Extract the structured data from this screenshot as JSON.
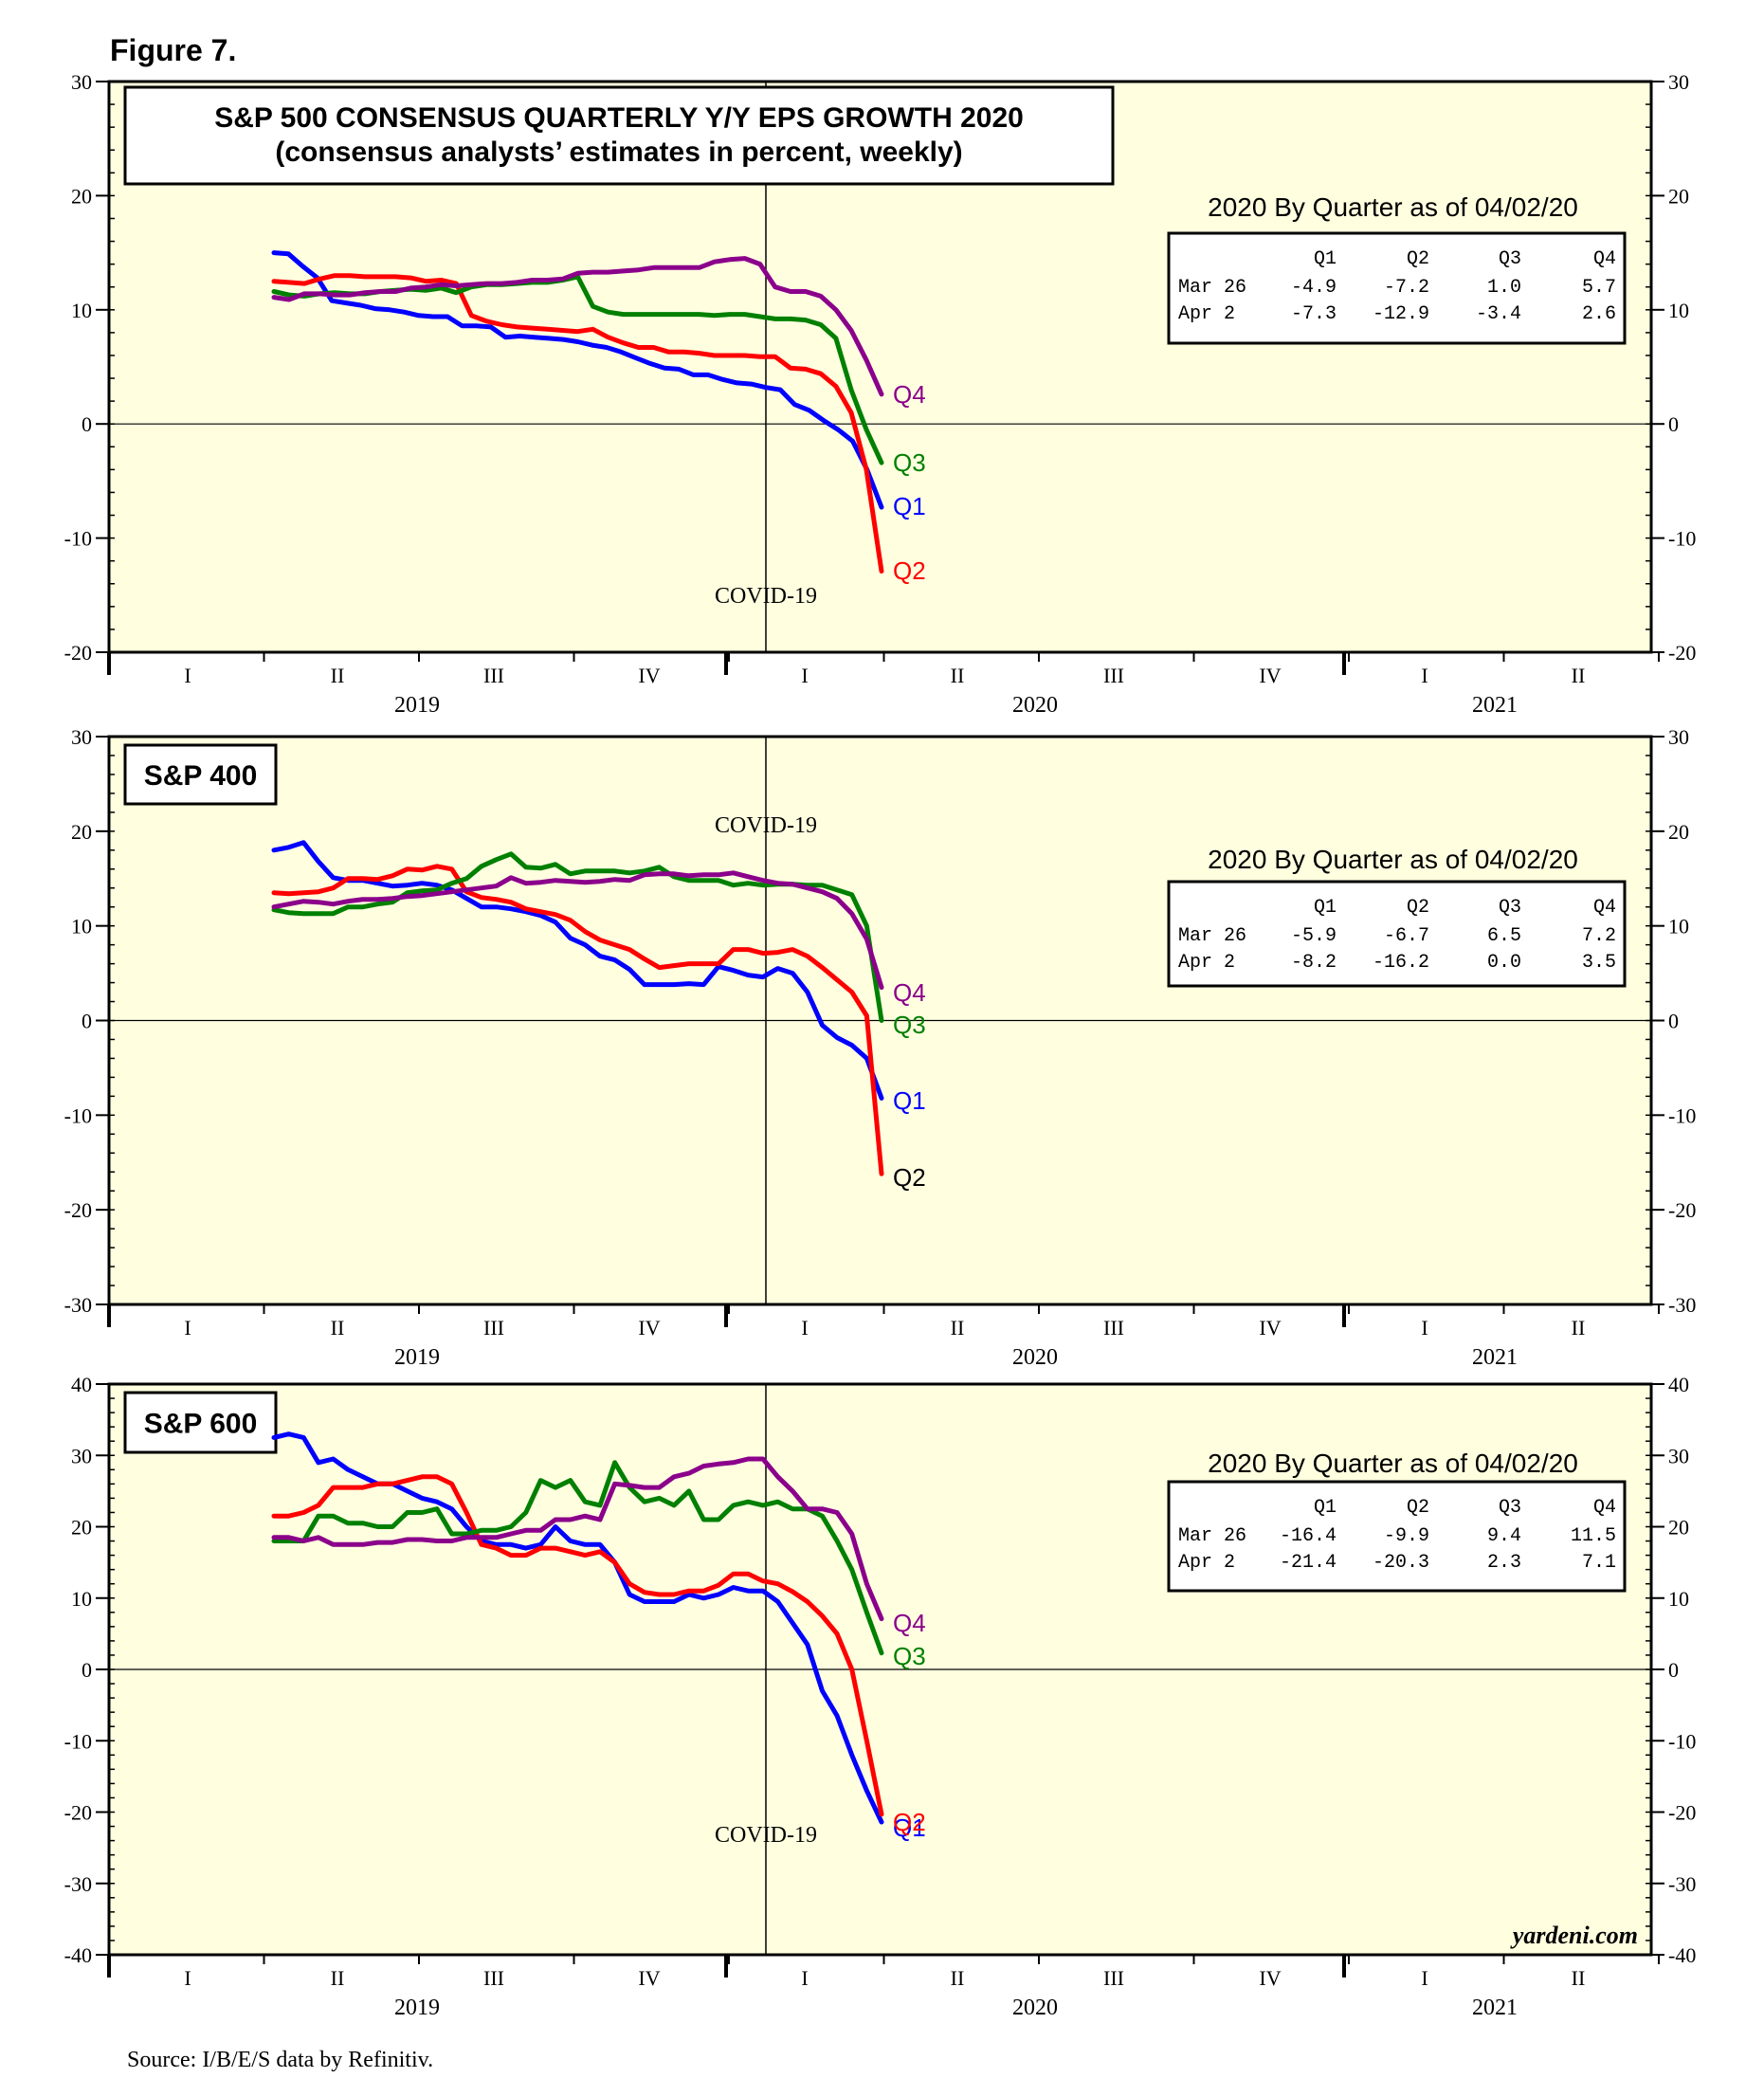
{
  "figure_label": "Figure 7.",
  "source": "Source: I/B/E/S data by Refinitiv.",
  "credit": "yardeni.com",
  "colors": {
    "Q1": "#0000ff",
    "Q2": "#ff0000",
    "Q3": "#008000",
    "Q4": "#8b008b",
    "panel_bg": "#ffffe0"
  },
  "x_axis": {
    "quarters": [
      "I",
      "II",
      "III",
      "IV",
      "I",
      "II",
      "III",
      "IV",
      "I",
      "II"
    ],
    "years": [
      "2019",
      "2020",
      "2021"
    ]
  },
  "chart_data": [
    {
      "type": "line",
      "id": "sp500",
      "title": "S&P 500 CONSENSUS QUARTERLY Y/Y EPS GROWTH 2020",
      "subtitle": "(consensus analysts’ estimates in percent, weekly)",
      "ylim": [
        -20,
        30
      ],
      "yticks": [
        30,
        20,
        10,
        0,
        -10,
        -20
      ],
      "yticks_labels": [
        "30",
        "20",
        "10",
        "0",
        "-10",
        "-20"
      ],
      "annotation": "COVID-19",
      "table": {
        "title": "2020 By Quarter as of 04/02/20",
        "header": [
          "Q1",
          "Q2",
          "Q3",
          "Q4"
        ],
        "rows": [
          {
            "label": "Mar 26",
            "values": [
              "-4.9",
              "-7.2",
              "1.0",
              "5.7"
            ]
          },
          {
            "label": "Apr  2",
            "values": [
              "-7.3",
              "-12.9",
              "-3.4",
              "2.6"
            ]
          }
        ]
      },
      "series": [
        {
          "name": "Q1",
          "label": "Q1",
          "x": [
            0.0,
            0.1,
            0.2,
            0.28,
            0.4,
            0.5,
            0.6,
            0.7,
            0.8,
            0.9,
            1.0,
            1.1,
            1.2,
            1.3,
            1.4,
            1.5,
            1.6,
            1.7,
            1.8,
            1.9,
            2.0,
            2.1,
            2.2,
            2.3,
            2.4,
            2.5,
            2.6,
            2.7,
            2.8,
            2.9,
            3.0,
            3.1,
            3.2,
            3.3,
            3.4,
            3.5,
            3.6,
            3.7,
            3.8,
            3.9,
            4.0,
            4.1,
            4.2,
            4.3,
            4.4,
            4.5,
            4.6,
            4.7,
            4.8,
            4.9,
            5.0
          ],
          "values": [
            15.0,
            14.9,
            13.8,
            12.8,
            10.8,
            10.6,
            10.4,
            10.1,
            10.0,
            9.8,
            9.5,
            9.4,
            9.4,
            8.6,
            8.6,
            8.5,
            7.6,
            7.7,
            7.6,
            7.5,
            7.4,
            7.2,
            6.9,
            6.7,
            6.3,
            5.8,
            5.3,
            4.9,
            4.8,
            4.3,
            4.3,
            3.9,
            3.6,
            3.5,
            3.2,
            3.0,
            1.7,
            1.2,
            0.3,
            -0.5,
            -1.5,
            -4.0,
            -7.3,
            null,
            null,
            null,
            null,
            null,
            null,
            null,
            null
          ]
        },
        {
          "name": "Q2",
          "label": "Q2",
          "x": [
            0.0,
            0.1,
            0.2,
            0.3,
            0.4,
            0.5,
            0.6,
            0.7,
            0.8,
            0.9,
            1.0,
            1.1,
            1.2,
            1.3,
            1.4,
            1.5,
            1.6,
            1.7,
            1.8,
            1.9,
            2.0,
            2.1,
            2.2,
            2.3,
            2.4,
            2.5,
            2.6,
            2.7,
            2.8,
            2.9,
            3.0,
            3.1,
            3.2,
            3.3,
            3.4,
            3.5,
            3.6,
            3.7,
            3.8,
            3.9,
            4.0,
            4.1,
            4.2
          ],
          "values": [
            12.5,
            12.4,
            12.3,
            12.7,
            13.0,
            13.0,
            12.9,
            12.9,
            12.9,
            12.8,
            12.5,
            12.6,
            12.3,
            9.5,
            9.0,
            8.7,
            8.5,
            8.4,
            8.3,
            8.2,
            8.1,
            8.3,
            7.6,
            7.1,
            6.7,
            6.7,
            6.3,
            6.3,
            6.2,
            6.0,
            6.0,
            6.0,
            5.9,
            5.9,
            4.9,
            4.8,
            4.4,
            3.3,
            1.0,
            -4.0,
            -12.9,
            null,
            null
          ]
        },
        {
          "name": "Q3",
          "label": "Q3",
          "x": [
            0.0,
            0.1,
            0.2,
            0.3,
            0.4,
            0.5,
            0.6,
            0.7,
            0.8,
            0.9,
            1.0,
            1.1,
            1.2,
            1.3,
            1.4,
            1.5,
            1.6,
            1.7,
            1.8,
            1.9,
            2.0,
            2.1,
            2.2,
            2.3,
            2.4,
            2.5,
            2.6,
            2.7,
            2.8,
            2.9,
            3.0,
            3.1,
            3.2,
            3.3,
            3.4,
            3.5,
            3.6,
            3.7,
            3.8,
            3.9,
            4.0,
            4.1,
            4.2
          ],
          "values": [
            11.6,
            11.3,
            11.2,
            11.4,
            11.5,
            11.4,
            11.4,
            11.6,
            11.7,
            11.8,
            11.7,
            11.9,
            11.5,
            12.0,
            12.2,
            12.2,
            12.3,
            12.4,
            12.4,
            12.6,
            12.9,
            10.3,
            9.8,
            9.6,
            9.6,
            9.6,
            9.6,
            9.6,
            9.6,
            9.5,
            9.6,
            9.6,
            9.4,
            9.2,
            9.2,
            9.1,
            8.7,
            7.5,
            3.0,
            -0.5,
            -3.4,
            null,
            null
          ]
        },
        {
          "name": "Q4",
          "label": "Q4",
          "x": [
            0.0,
            0.1,
            0.2,
            0.3,
            0.4,
            0.5,
            0.6,
            0.7,
            0.8,
            0.9,
            1.0,
            1.1,
            1.2,
            1.3,
            1.4,
            1.5,
            1.6,
            1.7,
            1.8,
            1.9,
            2.0,
            2.1,
            2.2,
            2.3,
            2.4,
            2.5,
            2.6,
            2.7,
            2.8,
            2.9,
            3.0,
            3.1,
            3.2,
            3.3,
            3.4,
            3.5,
            3.6,
            3.7,
            3.8,
            3.9,
            4.0,
            4.1,
            4.2
          ],
          "values": [
            11.1,
            10.9,
            11.4,
            11.4,
            11.3,
            11.3,
            11.5,
            11.6,
            11.6,
            11.9,
            12.0,
            12.2,
            12.1,
            12.2,
            12.3,
            12.3,
            12.4,
            12.6,
            12.6,
            12.7,
            13.2,
            13.3,
            13.3,
            13.4,
            13.5,
            13.7,
            13.7,
            13.7,
            13.7,
            14.2,
            14.4,
            14.5,
            14.0,
            12.0,
            11.6,
            11.6,
            11.2,
            10.0,
            8.2,
            5.6,
            2.6,
            null,
            null
          ]
        }
      ]
    },
    {
      "type": "line",
      "id": "sp400",
      "title": "S&P 400",
      "ylim": [
        -30,
        30
      ],
      "yticks": [
        30,
        20,
        10,
        0,
        -10,
        -20,
        -30
      ],
      "yticks_labels": [
        "30",
        "20",
        "10",
        "0",
        "-10",
        "-20",
        "-30"
      ],
      "annotation": "COVID-19",
      "table": {
        "title": "2020 By Quarter as of 04/02/20",
        "header": [
          "Q1",
          "Q2",
          "Q3",
          "Q4"
        ],
        "rows": [
          {
            "label": "Mar 26",
            "values": [
              "-5.9",
              "-6.7",
              "6.5",
              "7.2"
            ]
          },
          {
            "label": "Apr  2",
            "values": [
              "-8.2",
              "-16.2",
              "0.0",
              "3.5"
            ]
          }
        ]
      },
      "series": [
        {
          "name": "Q1",
          "label": "Q1",
          "values": [
            18.0,
            18.3,
            18.8,
            16.8,
            15.1,
            14.8,
            14.8,
            14.5,
            14.2,
            14.3,
            14.5,
            14.3,
            13.8,
            12.9,
            12.0,
            12.0,
            11.8,
            11.5,
            11.1,
            10.4,
            8.7,
            8.0,
            6.8,
            6.4,
            5.4,
            3.8,
            3.8,
            3.8,
            3.9,
            3.8,
            5.7,
            5.3,
            4.8,
            4.6,
            5.5,
            5.0,
            3.0,
            -0.5,
            -1.8,
            -2.6,
            -4.0,
            -8.2
          ]
        },
        {
          "name": "Q2",
          "label": "Q2",
          "values": [
            13.5,
            13.4,
            13.5,
            13.6,
            14.0,
            15.0,
            15.0,
            14.9,
            15.3,
            16.0,
            15.9,
            16.3,
            16.0,
            13.6,
            13.0,
            12.8,
            12.5,
            11.8,
            11.5,
            11.2,
            10.6,
            9.4,
            8.5,
            8.0,
            7.5,
            6.5,
            5.6,
            5.8,
            6.0,
            6.0,
            6.0,
            7.5,
            7.5,
            7.1,
            7.2,
            7.5,
            6.8,
            5.6,
            4.3,
            3.0,
            0.5,
            -16.2
          ]
        },
        {
          "name": "Q3",
          "label": "Q3",
          "values": [
            11.7,
            11.4,
            11.3,
            11.3,
            11.3,
            12.0,
            12.0,
            12.3,
            12.5,
            13.5,
            13.7,
            13.8,
            14.5,
            15.0,
            16.3,
            17.0,
            17.6,
            16.2,
            16.1,
            16.5,
            15.5,
            15.8,
            15.8,
            15.8,
            15.6,
            15.8,
            16.2,
            15.2,
            14.8,
            14.8,
            14.8,
            14.3,
            14.5,
            14.3,
            14.4,
            14.4,
            14.3,
            14.3,
            13.8,
            13.3,
            10.0,
            0.0
          ]
        },
        {
          "name": "Q4",
          "label": "Q4",
          "values": [
            12.0,
            12.3,
            12.6,
            12.5,
            12.3,
            12.6,
            12.8,
            12.8,
            12.9,
            13.1,
            13.2,
            13.4,
            13.6,
            13.8,
            14.0,
            14.2,
            15.1,
            14.5,
            14.6,
            14.8,
            14.7,
            14.6,
            14.7,
            14.9,
            14.8,
            15.4,
            15.5,
            15.5,
            15.3,
            15.4,
            15.4,
            15.6,
            15.2,
            14.8,
            14.5,
            14.4,
            14.0,
            13.6,
            12.9,
            11.3,
            8.6,
            3.5
          ]
        }
      ]
    },
    {
      "type": "line",
      "id": "sp600",
      "title": "S&P 600",
      "ylim": [
        -40,
        40
      ],
      "yticks": [
        40,
        30,
        20,
        10,
        0,
        -10,
        -20,
        -30,
        -40
      ],
      "yticks_labels": [
        "40",
        "30",
        "20",
        "10",
        "0",
        "-10",
        "-20",
        "-30",
        "-40"
      ],
      "annotation": "COVID-19",
      "table": {
        "title": "2020 By Quarter as of 04/02/20",
        "header": [
          "Q1",
          "Q2",
          "Q3",
          "Q4"
        ],
        "rows": [
          {
            "label": "Mar 26",
            "values": [
              "-16.4",
              "-9.9",
              "9.4",
              "11.5"
            ]
          },
          {
            "label": "Apr  2",
            "values": [
              "-21.4",
              "-20.3",
              "2.3",
              "7.1"
            ]
          }
        ]
      },
      "series": [
        {
          "name": "Q1",
          "label": "Q1",
          "values": [
            32.5,
            33.0,
            32.5,
            29.0,
            29.5,
            28.0,
            27.0,
            26.0,
            26.0,
            25.0,
            24.0,
            23.5,
            22.5,
            20.0,
            18.0,
            17.5,
            17.5,
            17.0,
            17.5,
            20.0,
            18.0,
            17.5,
            17.5,
            15.0,
            10.5,
            9.5,
            9.5,
            9.5,
            10.5,
            10.0,
            10.5,
            11.5,
            11.0,
            11.0,
            9.5,
            6.5,
            3.5,
            -3.0,
            -6.5,
            -12.0,
            -17.0,
            -21.4
          ]
        },
        {
          "name": "Q2",
          "label": "Q2",
          "values": [
            21.5,
            21.5,
            22.0,
            23.0,
            25.5,
            25.5,
            25.5,
            26.0,
            26.0,
            26.5,
            27.0,
            27.0,
            26.0,
            22.0,
            17.5,
            17.0,
            16.0,
            16.0,
            17.0,
            17.0,
            16.5,
            16.0,
            16.5,
            15.0,
            12.0,
            10.8,
            10.5,
            10.5,
            11.0,
            11.0,
            11.8,
            13.4,
            13.4,
            12.4,
            12.0,
            10.9,
            9.5,
            7.5,
            5.0,
            0.0,
            -10.0,
            -20.3
          ]
        },
        {
          "name": "Q3",
          "label": "Q3",
          "values": [
            18.0,
            18.0,
            18.0,
            21.5,
            21.5,
            20.5,
            20.5,
            20.0,
            20.0,
            22.0,
            22.0,
            22.5,
            19.0,
            19.0,
            19.5,
            19.5,
            20.0,
            22.0,
            26.5,
            25.5,
            26.5,
            23.5,
            23.0,
            29.0,
            25.5,
            23.5,
            24.0,
            23.0,
            25.0,
            21.0,
            21.0,
            23.0,
            23.5,
            23.0,
            23.5,
            22.5,
            22.5,
            21.5,
            18.0,
            14.0,
            8.0,
            2.3
          ]
        },
        {
          "name": "Q4",
          "label": "Q4",
          "values": [
            18.5,
            18.5,
            18.0,
            18.5,
            17.5,
            17.5,
            17.5,
            17.8,
            17.8,
            18.2,
            18.2,
            18.0,
            18.0,
            18.5,
            18.5,
            18.5,
            19.0,
            19.5,
            19.5,
            21.0,
            21.0,
            21.5,
            21.0,
            26.0,
            25.8,
            25.5,
            25.5,
            27.0,
            27.5,
            28.5,
            28.8,
            29.0,
            29.5,
            29.5,
            27.0,
            25.0,
            22.5,
            22.5,
            22.0,
            19.0,
            12.0,
            7.1
          ]
        }
      ]
    }
  ]
}
